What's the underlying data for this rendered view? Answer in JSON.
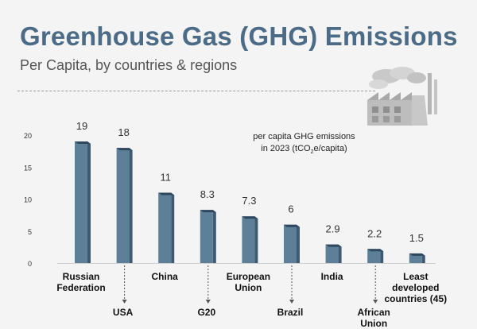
{
  "header": {
    "title": "Greenhouse Gas (GHG) Emissions",
    "subtitle": "Per Capita, by countries & regions"
  },
  "note": {
    "line1": "per capita GHG emissions",
    "line2_pre": "in 2023 (tCO",
    "line2_sub": "2",
    "line2_post": "e/capita)"
  },
  "illustration": "factory-icon",
  "colors": {
    "bar_front": "#5d7f98",
    "bar_side": "#3d5a72",
    "bar_top": "#2f475c",
    "title": "#4b6b86",
    "background": "#f4f4f4"
  },
  "chart_data": {
    "type": "bar",
    "categories": [
      "Russian Federation",
      "USA",
      "China",
      "G20",
      "European Union",
      "Brazil",
      "India",
      "African Union",
      "Least developed countries (45)"
    ],
    "values": [
      19,
      18,
      11,
      8.3,
      7.3,
      6,
      2.9,
      2.2,
      1.5
    ],
    "value_labels": [
      "19",
      "18",
      "11",
      "8.3",
      "7.3",
      "6",
      "2.9",
      "2.2",
      "1.5"
    ],
    "yticks": [
      0,
      5,
      10,
      15,
      20
    ],
    "ylim": [
      0,
      20
    ],
    "grid": false,
    "title": "",
    "xlabel": "",
    "ylabel": ""
  }
}
